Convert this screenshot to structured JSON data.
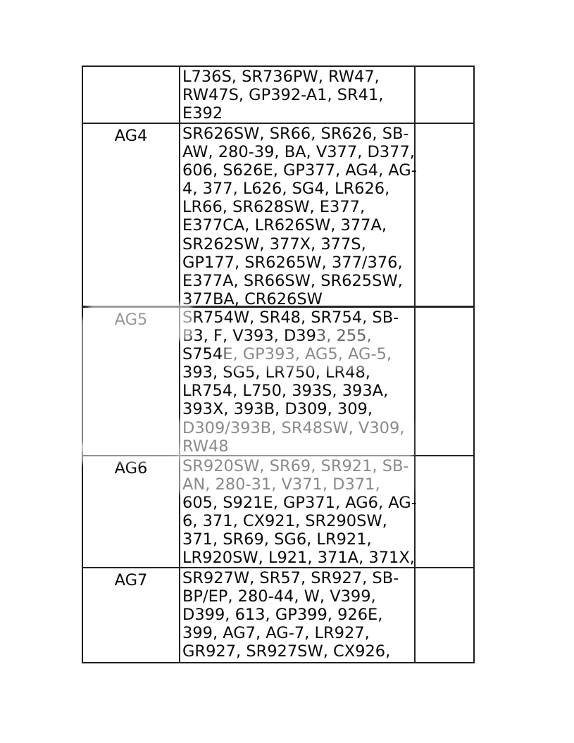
{
  "page": {
    "background": "#ffffff"
  },
  "colors": {
    "text": "#0a0a0a",
    "border": "#242424",
    "faded_text": "#9a9a9a",
    "watermark": "#ffffff"
  },
  "table": {
    "rows": [
      {
        "label": "",
        "lines": [
          "L736S, SR736PW, RW47,",
          "RW47S, GP392-A1, SR41,",
          "E392"
        ]
      },
      {
        "label": "AG4",
        "lines": [
          "SR626SW, SR66, SR626, SB-",
          "AW, 280-39, BA, V377, D377,",
          "606, S626E, GP377, AG4, AG-",
          "4, 377, L626, SG4, LR626,",
          "LR66, SR628SW, E377,",
          "E377CA, LR626SW, 377A,",
          "SR262SW, 377X, 377S,",
          "GP177, SR6265W, 377/376,",
          "E377A, SR66SW, SR625SW,",
          "377BA, CR626SW"
        ]
      },
      {
        "label": "AG5",
        "lines": [
          "SR754W, SR48, SR754, SB-",
          "B3, F, V393, D393, 255,",
          "S754E, GP393, AG5, AG-5,",
          "393, SG5, LR750, LR48,",
          "LR754, L750, 393S, 393A,",
          "393X, 393B, D309, 309,",
          "D309/393B, SR48SW, V309,",
          "RW48"
        ]
      },
      {
        "label": "AG6",
        "lines": [
          "SR920SW, SR69, SR921, SB-",
          "AN, 280-31, V371, D371,",
          "605, S921E, GP371, AG6, AG-",
          "6, 371, CX921, SR290SW,",
          "371, SR69, SG6, LR921,",
          "LR920SW, L921, 371A, 371X,"
        ]
      },
      {
        "label": "AG7",
        "lines": [
          "SR927W, SR57, SR927, SB-",
          "BP/EP, 280-44, W, V399,",
          "D399, 613, GP399, 926E,",
          "399, AG7, AG-7, LR927,",
          "GR927, SR927SW, CX926,"
        ]
      }
    ]
  }
}
